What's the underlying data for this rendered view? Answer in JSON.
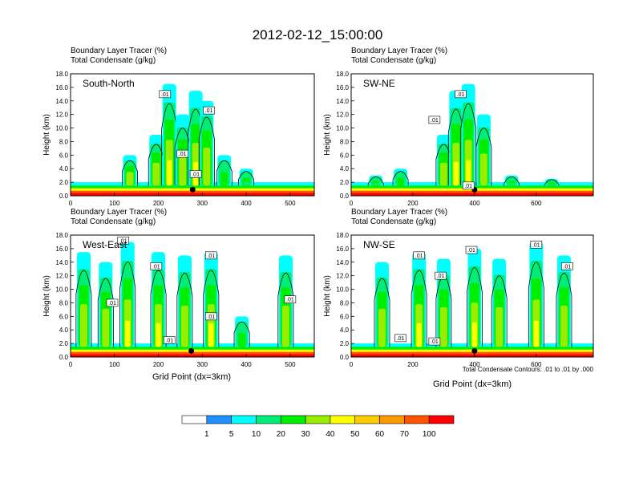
{
  "figure": {
    "title": "2012-02-12_15:00:00",
    "header_line1": "Boundary Layer Tracer   (%)",
    "header_line2": "Total Condensate   (g/kg)",
    "y_axis_label": "Height (km)",
    "x_axis_label": "Grid Point (dx=3km)",
    "contour_note": "Total Condensate Contours: .01 to .01 by .000",
    "contour_label_text": ".01"
  },
  "chart_data": [
    {
      "type": "heatmap",
      "panel_label": "South-North",
      "title": "Boundary Layer Tracer (%)",
      "subtitle": "Total Condensate (g/kg)",
      "ylabel": "Height (km)",
      "xlabel": "",
      "xlim": [
        0,
        555
      ],
      "ylim": [
        0,
        18
      ],
      "x_ticks": [
        0,
        100,
        200,
        300,
        400,
        500
      ],
      "y_ticks": [
        "0.0",
        "2.0",
        "4.0",
        "6.0",
        "8.0",
        "10.0",
        "12.0",
        "14.0",
        "16.0",
        "18.0"
      ],
      "surface_marker_x": 278,
      "contour_labels_at": [
        [
          215,
          15.0
        ],
        [
          315,
          12.6
        ],
        [
          255,
          6.2
        ],
        [
          285,
          3.2
        ]
      ],
      "tracer_columns": [
        {
          "x": 135,
          "top": 6.0,
          "level": 30
        },
        {
          "x": 195,
          "top": 9.0,
          "level": 30
        },
        {
          "x": 225,
          "top": 16.5,
          "level": 40
        },
        {
          "x": 255,
          "top": 12.0,
          "level": 30
        },
        {
          "x": 285,
          "top": 15.5,
          "level": 40
        },
        {
          "x": 310,
          "top": 14.0,
          "level": 30
        },
        {
          "x": 350,
          "top": 6.0,
          "level": 20
        },
        {
          "x": 400,
          "top": 4.0,
          "level": 10
        }
      ]
    },
    {
      "type": "heatmap",
      "panel_label": "SW-NE",
      "title": "Boundary Layer Tracer (%)",
      "subtitle": "Total Condensate (g/kg)",
      "ylabel": "Height (km)",
      "xlabel": "",
      "xlim": [
        0,
        785
      ],
      "ylim": [
        0,
        18
      ],
      "x_ticks": [
        0,
        200,
        400,
        600
      ],
      "y_ticks": [
        "0.0",
        "2.0",
        "4.0",
        "6.0",
        "8.0",
        "10.0",
        "12.0",
        "14.0",
        "16.0",
        "18.0"
      ],
      "surface_marker_x": 400,
      "contour_labels_at": [
        [
          355,
          15.0
        ],
        [
          270,
          11.2
        ],
        [
          380,
          1.5
        ]
      ],
      "tracer_columns": [
        {
          "x": 80,
          "top": 3.0,
          "level": 10
        },
        {
          "x": 160,
          "top": 4.0,
          "level": 20
        },
        {
          "x": 300,
          "top": 9.0,
          "level": 30
        },
        {
          "x": 340,
          "top": 15.5,
          "level": 40
        },
        {
          "x": 380,
          "top": 16.5,
          "level": 40
        },
        {
          "x": 430,
          "top": 12.0,
          "level": 30
        },
        {
          "x": 520,
          "top": 3.0,
          "level": 10
        },
        {
          "x": 650,
          "top": 2.5,
          "level": 10
        }
      ]
    },
    {
      "type": "heatmap",
      "panel_label": "West-East",
      "title": "Boundary Layer Tracer (%)",
      "subtitle": "Total Condensate (g/kg)",
      "ylabel": "Height (km)",
      "xlabel": "Grid Point (dx=3km)",
      "xlim": [
        0,
        555
      ],
      "ylim": [
        0,
        18
      ],
      "x_ticks": [
        0,
        100,
        200,
        300,
        400,
        500
      ],
      "y_ticks": [
        "0.0",
        "2.0",
        "4.0",
        "6.0",
        "8.0",
        "10.0",
        "12.0",
        "14.0",
        "16.0",
        "18.0"
      ],
      "surface_marker_x": 275,
      "contour_labels_at": [
        [
          120,
          17.2
        ],
        [
          195,
          13.4
        ],
        [
          95,
          8.0
        ],
        [
          320,
          15.0
        ],
        [
          320,
          6.0
        ],
        [
          225,
          2.5
        ],
        [
          500,
          8.5
        ]
      ],
      "tracer_columns": [
        {
          "x": 30,
          "top": 15.5,
          "level": 30
        },
        {
          "x": 80,
          "top": 14.0,
          "level": 30
        },
        {
          "x": 130,
          "top": 17.0,
          "level": 40
        },
        {
          "x": 200,
          "top": 15.5,
          "level": 40
        },
        {
          "x": 260,
          "top": 15.0,
          "level": 30
        },
        {
          "x": 320,
          "top": 15.5,
          "level": 40
        },
        {
          "x": 390,
          "top": 6.0,
          "level": 20
        },
        {
          "x": 490,
          "top": 15.0,
          "level": 30
        }
      ]
    },
    {
      "type": "heatmap",
      "panel_label": "NW-SE",
      "title": "Boundary Layer Tracer (%)",
      "subtitle": "Total Condensate (g/kg)",
      "ylabel": "Height (km)",
      "xlabel": "Grid Point (dx=3km)",
      "xlim": [
        0,
        785
      ],
      "ylim": [
        0,
        18
      ],
      "x_ticks": [
        0,
        200,
        400,
        600
      ],
      "y_ticks": [
        "0.0",
        "2.0",
        "4.0",
        "6.0",
        "8.0",
        "10.0",
        "12.0",
        "14.0",
        "16.0",
        "18.0"
      ],
      "surface_marker_x": 400,
      "contour_labels_at": [
        [
          220,
          15.0
        ],
        [
          290,
          12.0
        ],
        [
          390,
          15.8
        ],
        [
          600,
          16.6
        ],
        [
          700,
          13.4
        ],
        [
          160,
          2.8
        ],
        [
          270,
          2.3
        ]
      ],
      "tracer_columns": [
        {
          "x": 100,
          "top": 14.0,
          "level": 30
        },
        {
          "x": 220,
          "top": 15.5,
          "level": 40
        },
        {
          "x": 300,
          "top": 14.5,
          "level": 30
        },
        {
          "x": 400,
          "top": 16.0,
          "level": 40
        },
        {
          "x": 480,
          "top": 14.5,
          "level": 30
        },
        {
          "x": 600,
          "top": 17.0,
          "level": 40
        },
        {
          "x": 690,
          "top": 15.0,
          "level": 30
        }
      ]
    }
  ],
  "colorbar": {
    "labels": [
      "1",
      "5",
      "10",
      "20",
      "30",
      "40",
      "50",
      "60",
      "70",
      "100"
    ],
    "colors": [
      "#ffffff",
      "#1e90ff",
      "#00ffff",
      "#00ee77",
      "#00ee00",
      "#99ee00",
      "#ffff00",
      "#ffcc00",
      "#ff9900",
      "#ff5500",
      "#ff0000"
    ]
  }
}
